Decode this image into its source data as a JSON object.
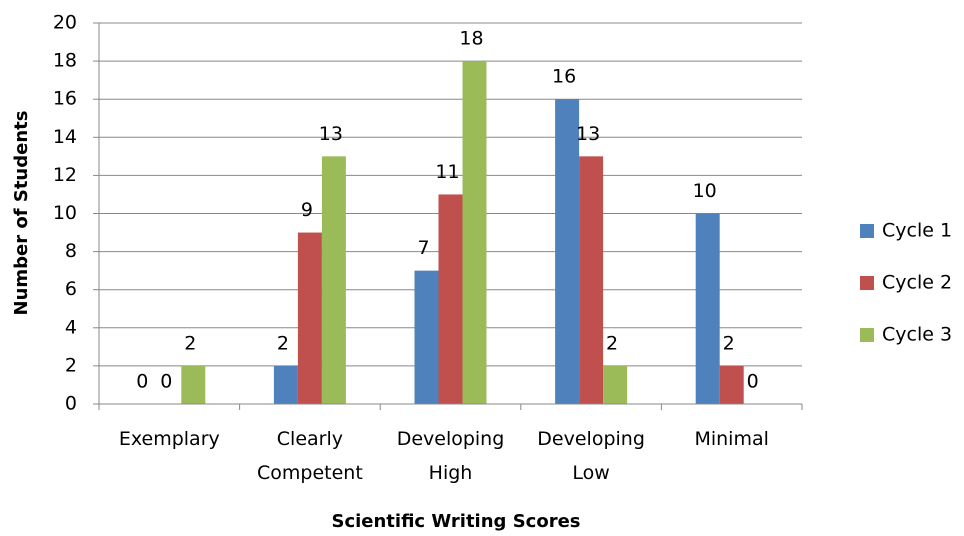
{
  "chart_data": {
    "type": "bar",
    "x_label": "Scientific Writing Scores",
    "y_label": "Number of Students",
    "categories": [
      "Exemplary",
      "Clearly Competent",
      "Developing High",
      "Developing Low",
      "Minimal"
    ],
    "series": [
      {
        "name": "Cycle 1",
        "color": "#4f81bd",
        "values": [
          0,
          2,
          7,
          16,
          10
        ]
      },
      {
        "name": "Cycle 2",
        "color": "#c0504d",
        "values": [
          0,
          9,
          11,
          13,
          2
        ]
      },
      {
        "name": "Cycle 3",
        "color": "#9bbb59",
        "values": [
          2,
          13,
          18,
          2,
          0
        ]
      }
    ],
    "ylim": [
      0,
      20
    ],
    "yticks": [
      0,
      2,
      4,
      6,
      8,
      10,
      12,
      14,
      16,
      18,
      20
    ],
    "grid": true,
    "legend": "right"
  }
}
